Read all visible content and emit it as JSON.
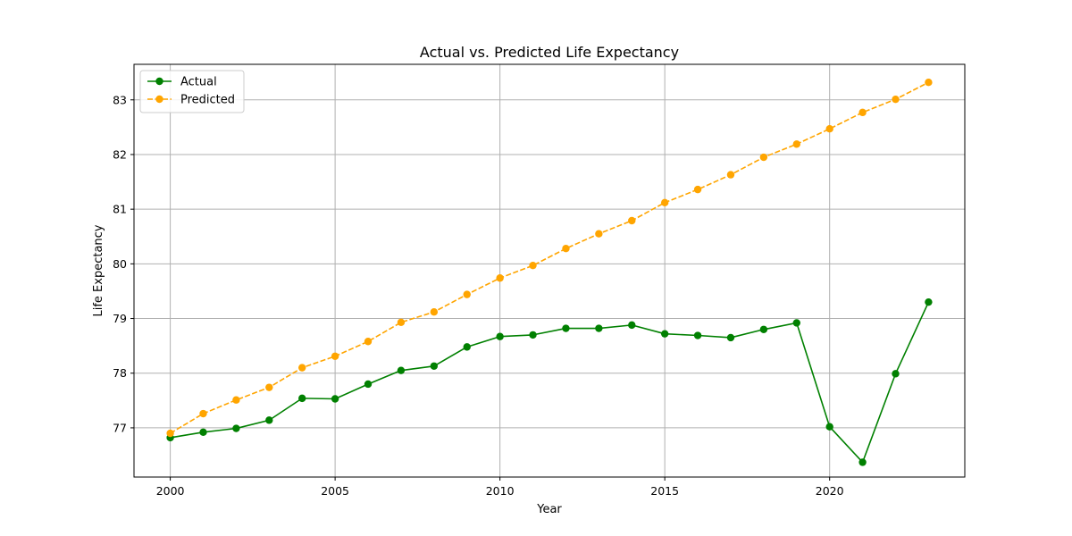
{
  "chart_data": {
    "type": "line",
    "title": "Actual vs. Predicted Life Expectancy",
    "xlabel": "Year",
    "ylabel": "Life Expectancy",
    "x": [
      2000,
      2001,
      2002,
      2003,
      2004,
      2005,
      2006,
      2007,
      2008,
      2009,
      2010,
      2011,
      2012,
      2013,
      2014,
      2015,
      2016,
      2017,
      2018,
      2019,
      2020,
      2021,
      2022,
      2023
    ],
    "series": [
      {
        "name": "Actual",
        "color": "#008000",
        "line_style": "solid",
        "marker": "circle",
        "values": [
          76.82,
          76.92,
          76.99,
          77.14,
          77.54,
          77.53,
          77.8,
          78.05,
          78.13,
          78.48,
          78.67,
          78.7,
          78.82,
          78.82,
          78.88,
          78.72,
          78.69,
          78.65,
          78.8,
          78.92,
          77.02,
          76.37,
          77.99,
          79.3
        ]
      },
      {
        "name": "Predicted",
        "color": "#ffa500",
        "line_style": "dashed",
        "marker": "circle",
        "values": [
          76.9,
          77.26,
          77.51,
          77.74,
          78.1,
          78.31,
          78.58,
          78.93,
          79.12,
          79.44,
          79.74,
          79.97,
          80.28,
          80.55,
          80.79,
          81.12,
          81.36,
          81.63,
          81.95,
          82.19,
          82.47,
          82.77,
          83.01,
          83.32
        ]
      }
    ],
    "xlim": [
      1998.9,
      2024.1
    ],
    "ylim": [
      76.1,
      83.65
    ],
    "x_ticks": [
      2000,
      2005,
      2010,
      2015,
      2020
    ],
    "y_ticks": [
      77,
      78,
      79,
      80,
      81,
      82,
      83
    ],
    "grid": true,
    "legend_position": "upper-left"
  }
}
